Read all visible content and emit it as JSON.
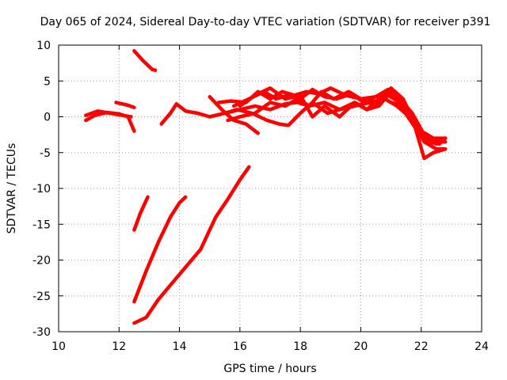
{
  "chart_data": {
    "type": "line",
    "title": "Day 065 of 2024, Sidereal Day-to-day VTEC variation (SDTVAR) for receiver p391",
    "xlabel": "GPS time / hours",
    "ylabel": "SDTVAR / TECUs",
    "xlim": [
      10,
      24
    ],
    "ylim": [
      -30,
      10
    ],
    "xticks": [
      10,
      12,
      14,
      16,
      18,
      20,
      22,
      24
    ],
    "yticks": [
      -30,
      -25,
      -20,
      -15,
      -10,
      -5,
      0,
      5,
      10
    ],
    "grid": true,
    "color": "#ff0000",
    "series": [
      {
        "name": "s1",
        "x": [
          10.9,
          11.2,
          11.6,
          12.0,
          12.3,
          12.5
        ],
        "y": [
          -0.5,
          0.2,
          0.6,
          0.4,
          0.0,
          -2.0
        ]
      },
      {
        "name": "s2",
        "x": [
          10.9,
          11.3,
          11.7,
          12.1,
          12.4
        ],
        "y": [
          0.2,
          0.8,
          0.5,
          0.2,
          0.0
        ]
      },
      {
        "name": "s3",
        "x": [
          11.9,
          12.3,
          12.5
        ],
        "y": [
          2.0,
          1.6,
          1.3
        ]
      },
      {
        "name": "s4",
        "x": [
          12.5,
          12.8,
          13.1,
          13.2
        ],
        "y": [
          9.2,
          7.8,
          6.6,
          6.5
        ]
      },
      {
        "name": "s5",
        "x": [
          12.5,
          12.7,
          12.95
        ],
        "y": [
          -15.8,
          -13.5,
          -11.2
        ]
      },
      {
        "name": "s6",
        "x": [
          12.5,
          12.9,
          13.3,
          13.7,
          14.0,
          14.2
        ],
        "y": [
          -25.8,
          -21.5,
          -17.5,
          -14.0,
          -12.0,
          -11.2
        ]
      },
      {
        "name": "s7",
        "x": [
          12.5,
          12.9,
          13.3,
          13.7,
          14.2,
          14.7,
          15.2,
          15.6,
          16.0,
          16.3
        ],
        "y": [
          -28.8,
          -28.0,
          -25.5,
          -23.5,
          -21.0,
          -18.5,
          -14.0,
          -11.5,
          -8.8,
          -7.0
        ]
      },
      {
        "name": "s8",
        "x": [
          13.4,
          13.7,
          13.9,
          14.2,
          14.6,
          15.0,
          15.5,
          16.0,
          16.5,
          17.0,
          17.5,
          17.9,
          18.3,
          18.8,
          19.3,
          19.8,
          20.3,
          20.8,
          21.2,
          21.6,
          22.0,
          22.4,
          22.8
        ],
        "y": [
          -1.0,
          0.5,
          1.8,
          0.8,
          0.5,
          0.0,
          0.5,
          1.0,
          1.5,
          1.0,
          1.8,
          2.0,
          1.5,
          2.0,
          1.0,
          1.5,
          2.0,
          2.5,
          1.5,
          0.0,
          -2.0,
          -3.0,
          -3.0
        ]
      },
      {
        "name": "s9",
        "x": [
          15.0,
          15.4,
          15.8,
          16.2,
          16.6
        ],
        "y": [
          2.8,
          1.0,
          -0.5,
          -1.0,
          -2.3
        ]
      },
      {
        "name": "s10",
        "x": [
          15.3,
          15.7,
          16.2,
          16.6,
          17.0,
          17.4,
          17.8,
          18.2,
          18.6,
          19.0,
          19.5,
          20.0,
          20.5,
          20.9,
          21.3,
          21.7,
          22.1,
          22.5,
          22.8
        ],
        "y": [
          2.0,
          2.2,
          2.0,
          3.5,
          2.5,
          3.5,
          3.0,
          3.5,
          3.2,
          4.0,
          3.0,
          2.5,
          2.8,
          3.8,
          2.5,
          0.5,
          -2.5,
          -3.8,
          -3.0
        ]
      },
      {
        "name": "s11",
        "x": [
          15.8,
          16.3,
          16.8,
          17.2,
          17.6,
          18.0,
          18.4,
          18.8,
          19.2,
          19.7,
          20.1,
          20.6,
          21.0,
          21.4,
          21.8,
          22.2,
          22.6,
          22.8
        ],
        "y": [
          1.5,
          2.5,
          3.5,
          2.5,
          3.0,
          2.5,
          3.8,
          2.8,
          2.5,
          3.2,
          2.0,
          3.0,
          2.0,
          1.5,
          -1.5,
          -3.0,
          -3.5,
          -3.5
        ]
      },
      {
        "name": "s12",
        "x": [
          15.6,
          16.0,
          16.5,
          17.0,
          17.5,
          17.9,
          18.3,
          18.7,
          19.1,
          19.6,
          20.0,
          20.5,
          20.9,
          21.3,
          21.7,
          22.1,
          22.5,
          22.8
        ],
        "y": [
          -0.5,
          0.0,
          0.5,
          2.0,
          1.5,
          2.5,
          1.5,
          3.5,
          2.5,
          3.5,
          2.5,
          1.5,
          3.0,
          2.0,
          -0.5,
          -3.5,
          -4.5,
          -4.5
        ]
      },
      {
        "name": "s13",
        "x": [
          15.5,
          15.9,
          16.4,
          16.9,
          17.3,
          17.6,
          18.0,
          18.4,
          18.9,
          19.3,
          19.8,
          20.2,
          20.6,
          21.0,
          21.4,
          21.8,
          22.1,
          22.4,
          22.8
        ],
        "y": [
          0.5,
          1.0,
          0.5,
          -0.5,
          -1.0,
          -1.2,
          0.5,
          2.0,
          0.5,
          1.0,
          2.0,
          1.0,
          1.5,
          3.5,
          1.0,
          -1.5,
          -5.8,
          -5.0,
          -4.5
        ]
      },
      {
        "name": "s14",
        "x": [
          16.0,
          16.5,
          17.0,
          17.5,
          18.0,
          18.4,
          18.8,
          19.3,
          19.8,
          20.2,
          20.6,
          21.0,
          21.4,
          21.8,
          22.2,
          22.6,
          22.8
        ],
        "y": [
          1.5,
          3.0,
          4.0,
          2.5,
          3.0,
          0.0,
          1.5,
          0.0,
          2.0,
          1.0,
          2.5,
          4.0,
          2.5,
          -1.0,
          -3.5,
          -3.8,
          -3.0
        ]
      }
    ]
  }
}
